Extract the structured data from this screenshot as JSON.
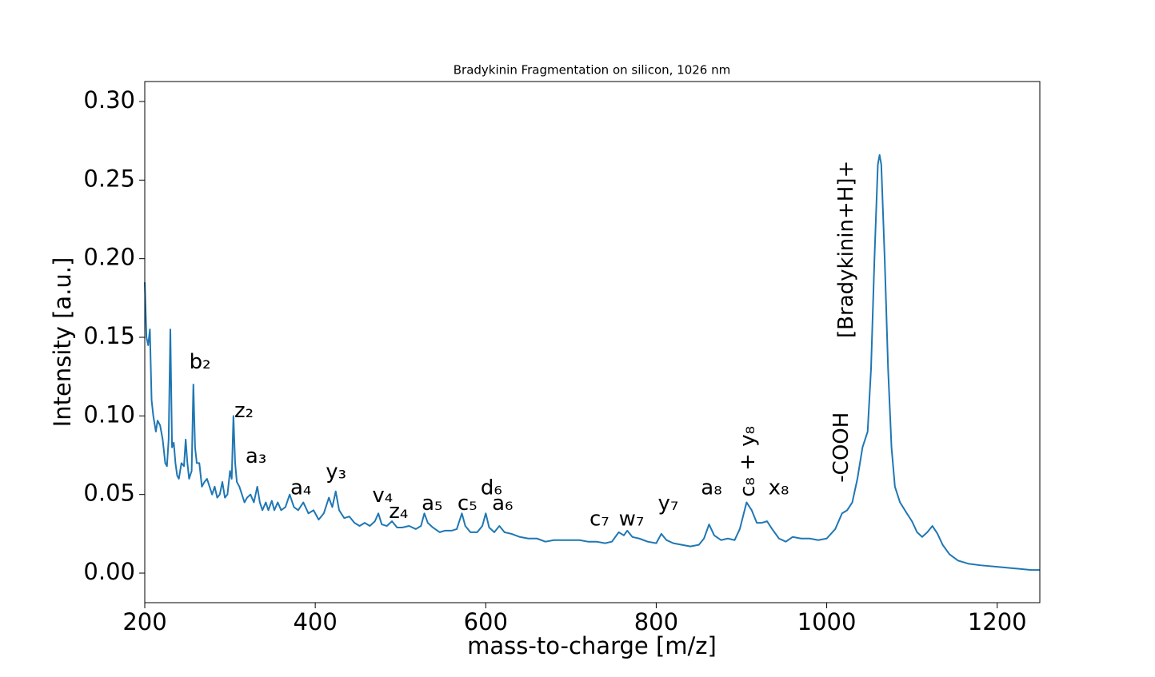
{
  "chart_data": {
    "type": "line",
    "title": "Bradykinin Fragmentation on silicon, 1026 nm",
    "x_label": "mass-to-charge [m/z]",
    "y_label": "Intensity [a.u.]",
    "color": "#1f77b4",
    "xlim": [
      200,
      1250
    ],
    "ylim": [
      -0.0188,
      0.3127
    ],
    "xticks": [
      200,
      400,
      600,
      800,
      1000,
      1200
    ],
    "yticks": [
      {
        "value": 0,
        "label": "0.00"
      },
      0.05,
      {
        "value": 0.1,
        "label": "0.10"
      },
      0.15,
      {
        "value": 0.2,
        "label": "0.20"
      },
      0.25,
      {
        "value": 0.3,
        "label": "0.30"
      }
    ],
    "x": [
      200,
      202,
      204,
      206,
      208,
      210,
      213,
      215,
      218,
      221,
      224,
      226,
      228,
      230,
      232,
      234,
      236,
      238,
      240,
      243,
      246,
      248,
      250,
      252,
      255,
      257,
      259,
      261,
      264,
      267,
      270,
      273,
      276,
      279,
      282,
      285,
      288,
      291,
      294,
      297,
      300,
      302,
      304,
      306,
      308,
      311,
      314,
      317,
      320,
      324,
      328,
      332,
      335,
      338,
      342,
      345,
      349,
      352,
      356,
      360,
      365,
      370,
      375,
      380,
      386,
      392,
      398,
      404,
      410,
      416,
      420,
      424,
      428,
      434,
      440,
      446,
      452,
      458,
      464,
      470,
      474,
      478,
      484,
      490,
      496,
      502,
      510,
      518,
      524,
      528,
      532,
      538,
      546,
      552,
      560,
      566,
      572,
      576,
      582,
      590,
      596,
      600,
      604,
      610,
      616,
      622,
      630,
      640,
      650,
      660,
      670,
      680,
      690,
      700,
      710,
      720,
      730,
      740,
      748,
      756,
      762,
      766,
      772,
      780,
      790,
      800,
      806,
      812,
      820,
      830,
      840,
      850,
      856,
      862,
      868,
      876,
      884,
      892,
      898,
      906,
      912,
      918,
      924,
      930,
      936,
      944,
      952,
      960,
      970,
      980,
      990,
      1000,
      1010,
      1018,
      1024,
      1030,
      1036,
      1042,
      1048,
      1052,
      1056,
      1060,
      1062,
      1064,
      1068,
      1072,
      1076,
      1080,
      1086,
      1094,
      1100,
      1106,
      1112,
      1118,
      1124,
      1130,
      1136,
      1144,
      1154,
      1166,
      1180,
      1200,
      1220,
      1240,
      1250
    ],
    "values": [
      0.185,
      0.15,
      0.145,
      0.155,
      0.11,
      0.1,
      0.09,
      0.097,
      0.094,
      0.085,
      0.07,
      0.068,
      0.085,
      0.155,
      0.08,
      0.083,
      0.07,
      0.062,
      0.06,
      0.07,
      0.068,
      0.085,
      0.07,
      0.06,
      0.065,
      0.12,
      0.08,
      0.07,
      0.07,
      0.055,
      0.058,
      0.06,
      0.055,
      0.05,
      0.055,
      0.048,
      0.05,
      0.058,
      0.048,
      0.05,
      0.065,
      0.06,
      0.1,
      0.07,
      0.058,
      0.055,
      0.05,
      0.045,
      0.048,
      0.05,
      0.045,
      0.055,
      0.045,
      0.04,
      0.045,
      0.04,
      0.046,
      0.04,
      0.045,
      0.04,
      0.042,
      0.05,
      0.042,
      0.04,
      0.045,
      0.038,
      0.04,
      0.034,
      0.038,
      0.048,
      0.042,
      0.052,
      0.04,
      0.035,
      0.036,
      0.032,
      0.03,
      0.032,
      0.03,
      0.033,
      0.038,
      0.031,
      0.03,
      0.033,
      0.029,
      0.029,
      0.03,
      0.028,
      0.03,
      0.038,
      0.032,
      0.029,
      0.026,
      0.027,
      0.027,
      0.028,
      0.038,
      0.03,
      0.026,
      0.026,
      0.03,
      0.038,
      0.029,
      0.026,
      0.03,
      0.026,
      0.025,
      0.023,
      0.022,
      0.022,
      0.02,
      0.021,
      0.021,
      0.021,
      0.021,
      0.02,
      0.02,
      0.019,
      0.02,
      0.026,
      0.024,
      0.027,
      0.023,
      0.022,
      0.02,
      0.019,
      0.025,
      0.021,
      0.019,
      0.018,
      0.017,
      0.018,
      0.022,
      0.031,
      0.024,
      0.021,
      0.022,
      0.021,
      0.028,
      0.045,
      0.04,
      0.032,
      0.032,
      0.033,
      0.028,
      0.022,
      0.02,
      0.023,
      0.022,
      0.022,
      0.021,
      0.022,
      0.028,
      0.038,
      0.04,
      0.045,
      0.06,
      0.08,
      0.09,
      0.13,
      0.2,
      0.26,
      0.266,
      0.26,
      0.2,
      0.13,
      0.08,
      0.055,
      0.045,
      0.038,
      0.033,
      0.026,
      0.023,
      0.026,
      0.03,
      0.025,
      0.018,
      0.012,
      0.008,
      0.006,
      0.005,
      0.004,
      0.003,
      0.002,
      0.002
    ],
    "annotations": [
      {
        "text": "b₂",
        "x": 264.8,
        "y": 0.134
      },
      {
        "text": "z₂",
        "x": 316.4,
        "y": 0.103
      },
      {
        "text": "a₃",
        "x": 330.5,
        "y": 0.074
      },
      {
        "text": "a₄",
        "x": 383.1,
        "y": 0.054
      },
      {
        "text": "y₃",
        "x": 424.4,
        "y": 0.064
      },
      {
        "text": "v₄",
        "x": 478.9,
        "y": 0.049
      },
      {
        "text": "z₄",
        "x": 497.7,
        "y": 0.039
      },
      {
        "text": "a₅",
        "x": 537.1,
        "y": 0.044
      },
      {
        "text": "c₅",
        "x": 578.4,
        "y": 0.044
      },
      {
        "text": "d₆",
        "x": 606.6,
        "y": 0.054
      },
      {
        "text": "a₆",
        "x": 619.7,
        "y": 0.044
      },
      {
        "text": "c₇",
        "x": 733.3,
        "y": 0.034
      },
      {
        "text": "w₇",
        "x": 770.9,
        "y": 0.034
      },
      {
        "text": "y₇",
        "x": 814.1,
        "y": 0.044
      },
      {
        "text": "a₈",
        "x": 864.8,
        "y": 0.054
      },
      {
        "text": "c₈ + y₈",
        "x": 908,
        "y": 0.071,
        "rotation": 90
      },
      {
        "text": "x₈",
        "x": 943.7,
        "y": 0.054
      },
      {
        "text": "-COOH",
        "x": 1017.8,
        "y": 0.08,
        "rotation": 90
      },
      {
        "text": "[Bradykinin+H]+",
        "x": 1023.5,
        "y": 0.206,
        "rotation": 90
      }
    ]
  }
}
